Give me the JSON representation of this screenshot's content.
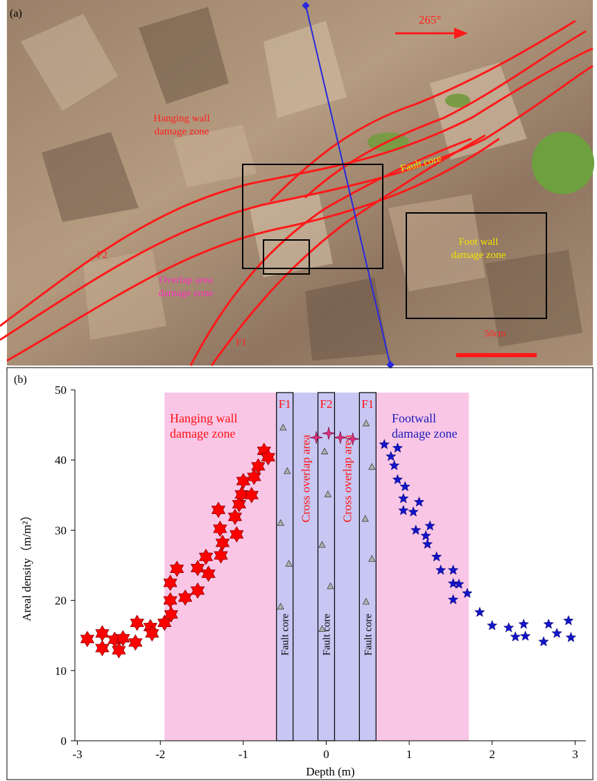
{
  "photo": {
    "panel_label": "(a)",
    "labels": [
      {
        "lines": [
          "265°"
        ],
        "color": "#ff2020"
      },
      {
        "lines": [
          "Hanging wall",
          "damage zone"
        ],
        "color": "#ff2020"
      },
      {
        "lines": [
          "Fault core"
        ],
        "color": "#f2e200"
      },
      {
        "lines": [
          "Foot wall",
          "damage zone"
        ],
        "color": "#f2e200"
      },
      {
        "lines": [
          "Overlap area",
          "damage zone"
        ],
        "color": "#ff30c0"
      },
      {
        "lines": [
          "F2"
        ],
        "color": "#ff2020"
      },
      {
        "lines": [
          "F1"
        ],
        "color": "#ff2020"
      },
      {
        "lines": [
          "50cm"
        ],
        "color": "#ff2020"
      }
    ]
  },
  "chart_data": {
    "type": "scatter",
    "panel_label": "(b)",
    "xlabel": "Depth (m)",
    "ylabel": "Areal density（m/m²）",
    "xlim": [
      -3.03,
      3.13
    ],
    "ylim": [
      0,
      50
    ],
    "xticks": [
      -3,
      -2,
      -1,
      0,
      1,
      2,
      3
    ],
    "yticks": [
      0,
      10,
      20,
      30,
      40,
      50
    ],
    "regions": [
      {
        "x": [
          -1.95,
          1.72
        ],
        "color": "#f9c6e6"
      },
      {
        "x": [
          -0.6,
          0.6
        ],
        "color": "#c8c6f2"
      }
    ],
    "zone_labels": [
      {
        "lines": [
          "Hanging  wall",
          "damage zone"
        ],
        "color": "#ff1010"
      },
      {
        "lines": [
          "Footwall",
          "damage zone"
        ],
        "color": "#1a1ab8"
      }
    ],
    "fault_cores": [
      {
        "x": [
          -0.6,
          -0.4
        ],
        "name": "F1",
        "text": "Fault core"
      },
      {
        "x": [
          -0.1,
          0.1
        ],
        "name": "F2",
        "text": "Fault core"
      },
      {
        "x": [
          0.4,
          0.6
        ],
        "name": "F1",
        "text": "Fault core"
      }
    ],
    "overlap_labels": [
      "Cross overlap area",
      "Cross overlap area"
    ],
    "series": [
      {
        "marker": "star6",
        "color": "#ff0000",
        "x": [
          -2.88,
          -2.7,
          -2.7,
          -2.55,
          -2.5,
          -2.45,
          -2.3,
          -2.28,
          -2.12,
          -2.1,
          -1.95,
          -1.87,
          -1.88,
          -1.88,
          -1.8,
          -1.7,
          -1.55,
          -1.55,
          -1.45,
          -1.42,
          -1.3,
          -1.28,
          -1.25,
          -1.27,
          -1.1,
          -1.08,
          -1.05,
          -1.02,
          -1.0,
          -0.9,
          -0.87,
          -0.82,
          -0.75,
          -0.7
        ],
        "values": [
          14.5,
          15.3,
          13.2,
          14.4,
          12.9,
          14.6,
          14.0,
          16.8,
          16.2,
          15.3,
          16.8,
          18.0,
          20.0,
          22.5,
          24.5,
          20.4,
          24.6,
          21.4,
          26.2,
          23.8,
          32.9,
          30.2,
          28.2,
          26.4,
          31.9,
          29.4,
          33.7,
          35.1,
          37.0,
          35.0,
          37.6,
          39.1,
          41.3,
          40.4
        ]
      },
      {
        "marker": "star5",
        "color": "#1414c8",
        "x": [
          0.7,
          0.78,
          0.86,
          0.82,
          0.86,
          0.95,
          0.93,
          0.93,
          1.05,
          1.12,
          1.08,
          1.2,
          1.22,
          1.25,
          1.33,
          1.38,
          1.53,
          1.53,
          1.53,
          1.6,
          1.7,
          1.85,
          2.0,
          2.2,
          2.28,
          2.38,
          2.4,
          2.62,
          2.68,
          2.78,
          2.92,
          2.95
        ],
        "values": [
          42.2,
          40.5,
          41.7,
          39.2,
          37.2,
          36.2,
          34.5,
          32.8,
          32.6,
          34.0,
          30.0,
          29.2,
          28.0,
          30.6,
          26.2,
          24.3,
          24.3,
          22.4,
          20.1,
          22.3,
          21.0,
          18.3,
          16.4,
          16.1,
          14.8,
          16.6,
          14.9,
          14.1,
          16.6,
          15.3,
          17.1,
          14.7
        ]
      },
      {
        "marker": "star4",
        "color": "#e0307a",
        "x": [
          -0.12,
          0.03,
          0.17,
          0.32
        ],
        "values": [
          43.2,
          43.8,
          43.2,
          43.0
        ]
      },
      {
        "marker": "triangle",
        "color": "#b0b0b0",
        "x": [
          -0.52,
          -0.47,
          -0.55,
          -0.45,
          -0.55,
          -0.02,
          0.02,
          -0.05,
          0.05,
          -0.05,
          0.48,
          0.55,
          0.47,
          0.55,
          0.48
        ],
        "values": [
          44.6,
          38.4,
          31.0,
          25.2,
          19.1,
          41.2,
          35.1,
          27.9,
          22.0,
          15.9,
          45.2,
          39.0,
          31.6,
          25.9,
          19.8
        ]
      }
    ]
  }
}
